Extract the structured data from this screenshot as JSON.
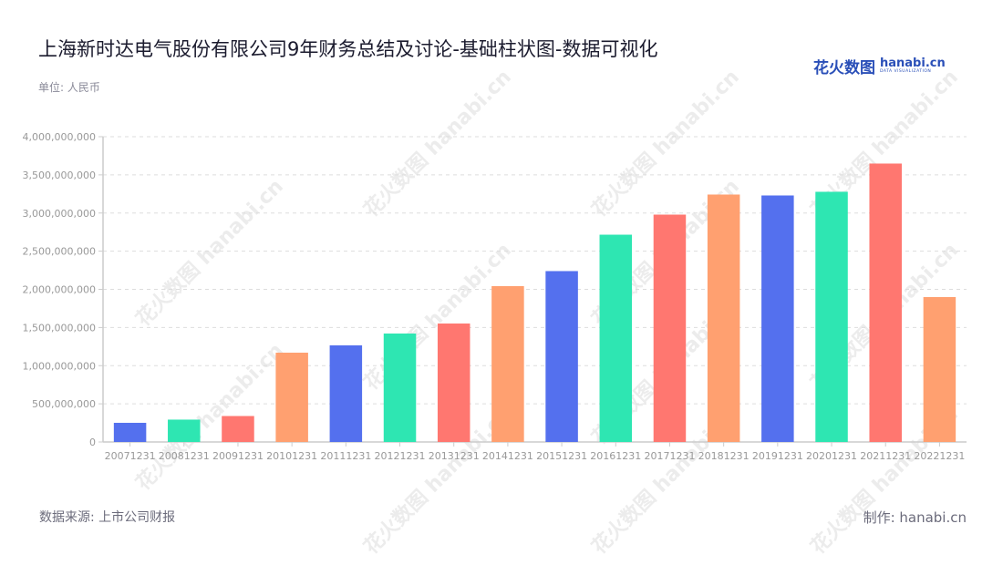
{
  "header": {
    "title": "上海新时达电气股份有限公司9年财务总结及讨论-基础柱状图-数据可视化",
    "unit": "单位: 人民币"
  },
  "logo": {
    "cn": "花火数图",
    "en": "hanabi.cn",
    "tagline": "DATA VISUALIZATION"
  },
  "footer": {
    "source": "数据来源: 上市公司财报",
    "credit": "制作: hanabi.cn"
  },
  "watermark_text": "花火数图 hanabi.cn",
  "colors": {
    "blue": "#5470ee",
    "green": "#2ee6b2",
    "red": "#ff7770",
    "orange": "#ffa070",
    "grid": "#dddddd",
    "axis": "#cccccc",
    "tick_label": "#999999"
  },
  "chart_data": {
    "type": "bar",
    "title": "上海新时达电气股份有限公司9年财务总结及讨论-基础柱状图-数据可视化",
    "subtitle": "单位: 人民币",
    "xlabel": "",
    "ylabel": "",
    "ylim": [
      0,
      4000000000
    ],
    "yticks": [
      0,
      500000000,
      1000000000,
      1500000000,
      2000000000,
      2500000000,
      3000000000,
      3500000000,
      4000000000
    ],
    "ytick_labels": [
      "0",
      "500,000,000",
      "1,000,000,000",
      "1,500,000,000",
      "2,000,000,000",
      "2,500,000,000",
      "3,000,000,000",
      "3,500,000,000",
      "4,000,000,000"
    ],
    "grid": true,
    "legend": null,
    "categories": [
      "20071231",
      "20081231",
      "20091231",
      "20101231",
      "20111231",
      "20121231",
      "20131231",
      "20141231",
      "20151231",
      "20161231",
      "20171231",
      "20181231",
      "20191231",
      "20201231",
      "20211231",
      "20221231"
    ],
    "values": [
      251000000,
      293000000,
      340000000,
      1170000000,
      1266000000,
      1421000000,
      1552000000,
      2042000000,
      2239000000,
      2716000000,
      2979000000,
      3242000000,
      3230000000,
      3278000000,
      3648000000,
      1899000000
    ],
    "bar_colors": [
      "#5470ee",
      "#2ee6b2",
      "#ff7770",
      "#ffa070",
      "#5470ee",
      "#2ee6b2",
      "#ff7770",
      "#ffa070",
      "#5470ee",
      "#2ee6b2",
      "#ff7770",
      "#ffa070",
      "#5470ee",
      "#2ee6b2",
      "#ff7770",
      "#ffa070"
    ]
  }
}
